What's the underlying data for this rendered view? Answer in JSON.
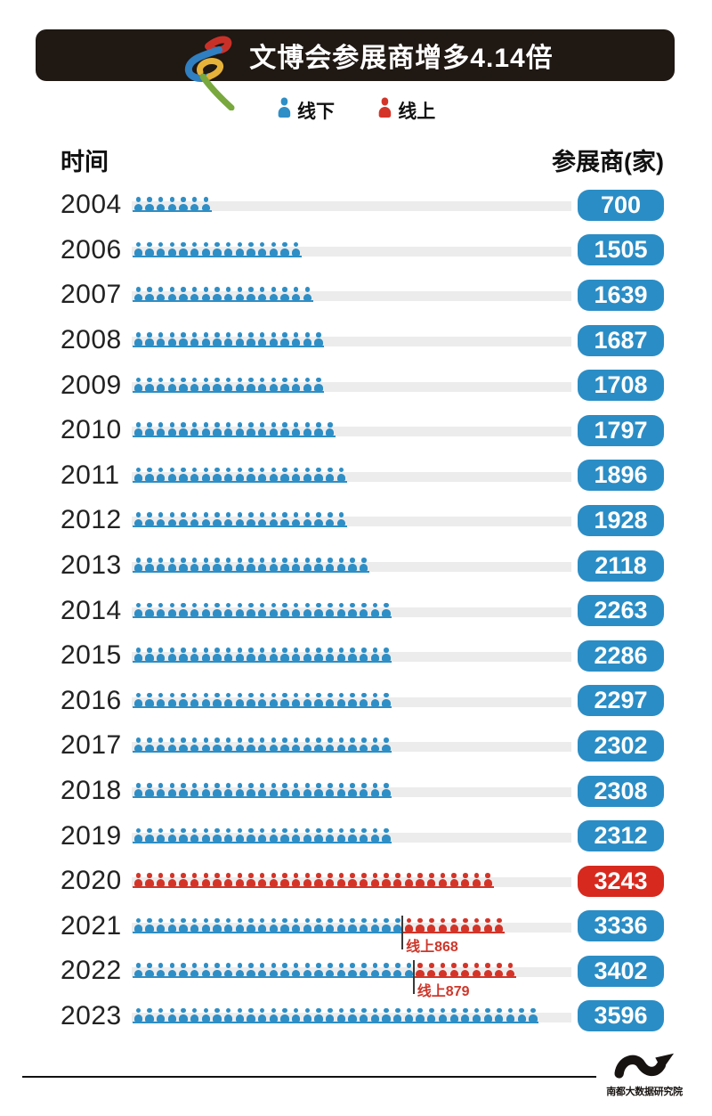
{
  "header": {
    "title": "文博会参展商增多4.14倍"
  },
  "legend": {
    "offline": {
      "label": "线下",
      "color": "#2e8ec6"
    },
    "online": {
      "label": "线上",
      "color": "#d43428"
    }
  },
  "columns": {
    "time": "时间",
    "exhibitors": "参展商(家)"
  },
  "footer": {
    "brand": "南都大数据研究院"
  },
  "colors": {
    "title_bar": "#201813",
    "offline_blue": "#2e8ec6",
    "online_red": "#d43428",
    "pill_blue": "#2b8dc5",
    "pill_red": "#d7291e",
    "track_gray": "#ececec",
    "annotation_red": "#cd372b"
  },
  "chart_data": {
    "type": "bar",
    "subtype": "pictogram",
    "title": "文博会参展商增多4.14倍",
    "xlabel": "时间",
    "ylabel": "参展商(家)",
    "unit_per_icon": 100,
    "legend_position": "top",
    "categories": [
      "2004",
      "2006",
      "2007",
      "2008",
      "2009",
      "2010",
      "2011",
      "2012",
      "2013",
      "2014",
      "2015",
      "2016",
      "2017",
      "2018",
      "2019",
      "2020",
      "2021",
      "2022",
      "2023"
    ],
    "values": [
      700,
      1505,
      1639,
      1687,
      1708,
      1797,
      1896,
      1928,
      2118,
      2263,
      2286,
      2297,
      2302,
      2308,
      2312,
      3243,
      3336,
      3402,
      3596
    ],
    "series": [
      {
        "name": "线下",
        "values": [
          700,
          1505,
          1639,
          1687,
          1708,
          1797,
          1896,
          1928,
          2118,
          2263,
          2286,
          2297,
          2302,
          2308,
          2312,
          0,
          2468,
          2523,
          3596
        ]
      },
      {
        "name": "线上",
        "values": [
          0,
          0,
          0,
          0,
          0,
          0,
          0,
          0,
          0,
          0,
          0,
          0,
          0,
          0,
          0,
          3243,
          868,
          879,
          0
        ]
      }
    ],
    "rows": [
      {
        "year": "2004",
        "total": 700,
        "offline_icons": 7,
        "online_icons": 0,
        "pill": "blue"
      },
      {
        "year": "2006",
        "total": 1505,
        "offline_icons": 15,
        "online_icons": 0,
        "pill": "blue"
      },
      {
        "year": "2007",
        "total": 1639,
        "offline_icons": 16,
        "online_icons": 0,
        "pill": "blue"
      },
      {
        "year": "2008",
        "total": 1687,
        "offline_icons": 17,
        "online_icons": 0,
        "pill": "blue"
      },
      {
        "year": "2009",
        "total": 1708,
        "offline_icons": 17,
        "online_icons": 0,
        "pill": "blue"
      },
      {
        "year": "2010",
        "total": 1797,
        "offline_icons": 18,
        "online_icons": 0,
        "pill": "blue"
      },
      {
        "year": "2011",
        "total": 1896,
        "offline_icons": 19,
        "online_icons": 0,
        "pill": "blue"
      },
      {
        "year": "2012",
        "total": 1928,
        "offline_icons": 19,
        "online_icons": 0,
        "pill": "blue"
      },
      {
        "year": "2013",
        "total": 2118,
        "offline_icons": 21,
        "online_icons": 0,
        "pill": "blue"
      },
      {
        "year": "2014",
        "total": 2263,
        "offline_icons": 23,
        "online_icons": 0,
        "pill": "blue"
      },
      {
        "year": "2015",
        "total": 2286,
        "offline_icons": 23,
        "online_icons": 0,
        "pill": "blue"
      },
      {
        "year": "2016",
        "total": 2297,
        "offline_icons": 23,
        "online_icons": 0,
        "pill": "blue"
      },
      {
        "year": "2017",
        "total": 2302,
        "offline_icons": 23,
        "online_icons": 0,
        "pill": "blue"
      },
      {
        "year": "2018",
        "total": 2308,
        "offline_icons": 23,
        "online_icons": 0,
        "pill": "blue"
      },
      {
        "year": "2019",
        "total": 2312,
        "offline_icons": 23,
        "online_icons": 0,
        "pill": "blue"
      },
      {
        "year": "2020",
        "total": 3243,
        "offline_icons": 0,
        "online_icons": 32,
        "pill": "red"
      },
      {
        "year": "2021",
        "total": 3336,
        "offline_icons": 24,
        "online_icons": 9,
        "pill": "blue",
        "annotation": "线上868"
      },
      {
        "year": "2022",
        "total": 3402,
        "offline_icons": 25,
        "online_icons": 9,
        "pill": "blue",
        "annotation": "线上879"
      },
      {
        "year": "2023",
        "total": 3596,
        "offline_icons": 36,
        "online_icons": 0,
        "pill": "blue"
      }
    ]
  }
}
